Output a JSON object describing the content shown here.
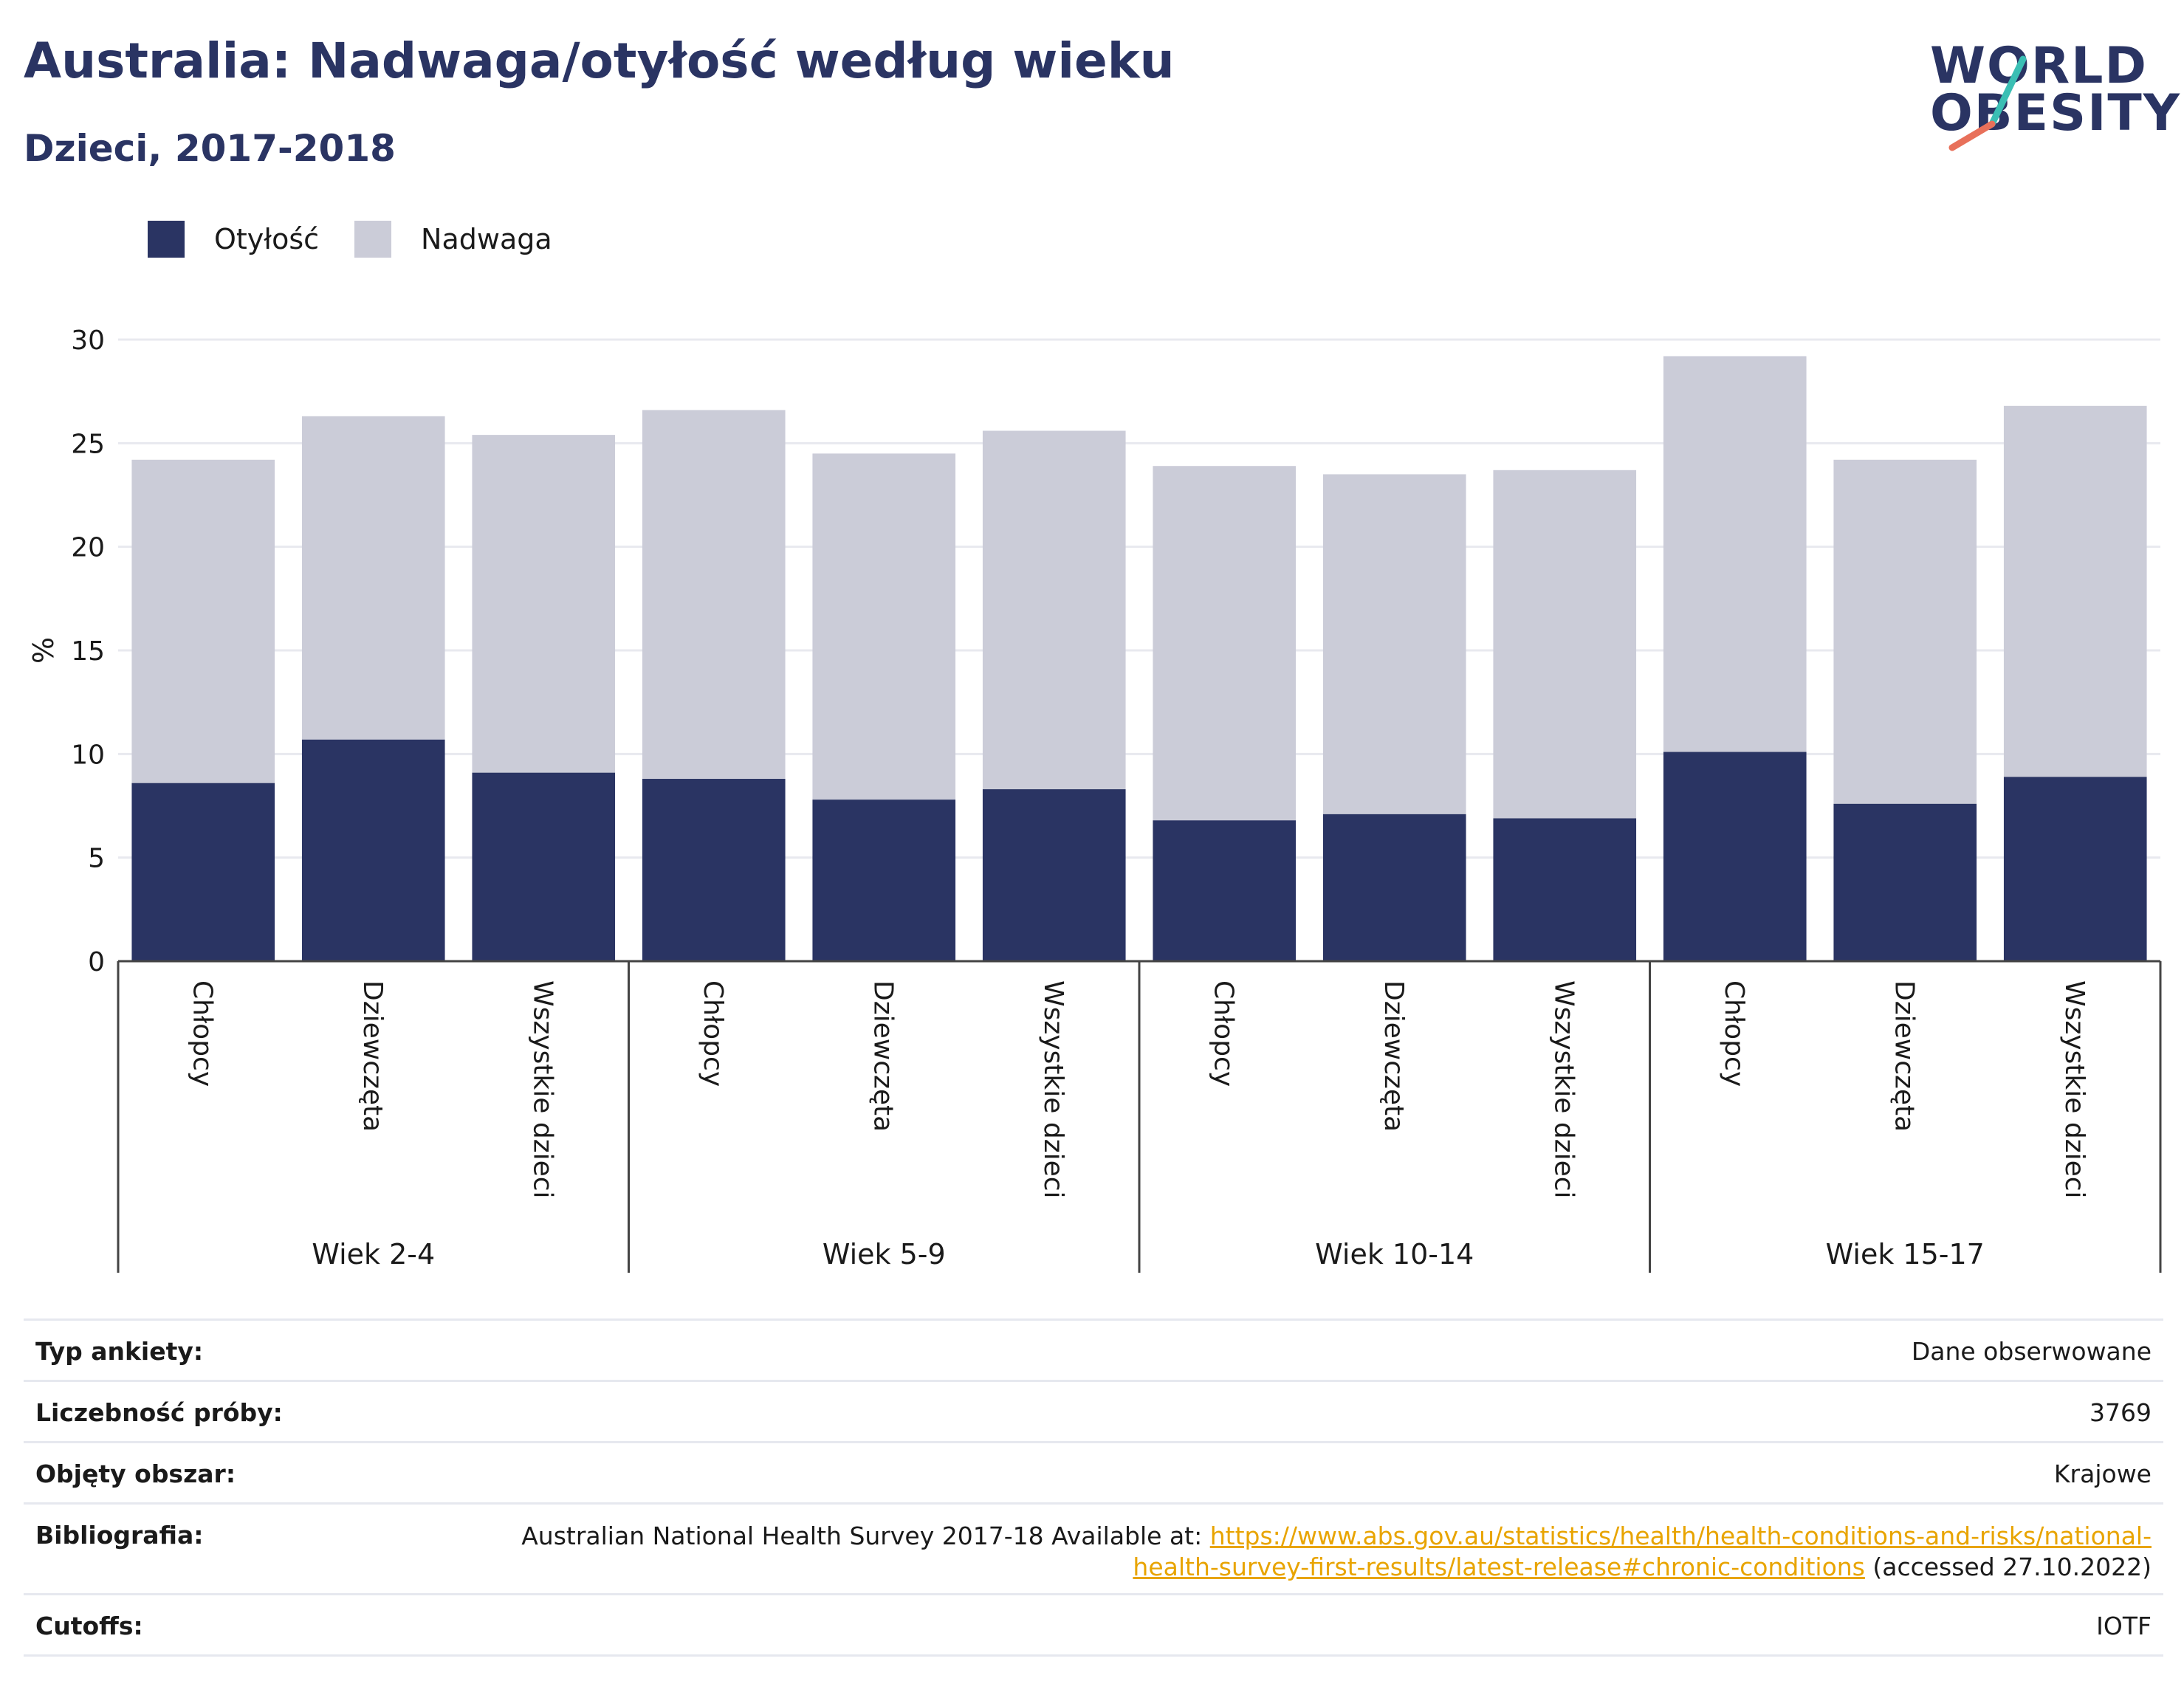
{
  "header": {
    "title": "Australia: Nadwaga/otyłość według wieku",
    "subtitle": "Dzieci, 2017-2018"
  },
  "logo": {
    "line1": "WORLD",
    "line2": "OBESITY",
    "colors": {
      "text": "#2a3463",
      "slash_top": "#3bbfb4",
      "slash_bottom": "#e8705a"
    }
  },
  "legend": [
    {
      "label": "Otyłość",
      "color": "#2a3463"
    },
    {
      "label": "Nadwaga",
      "color": "#cbccd8"
    }
  ],
  "chart_data": {
    "type": "bar",
    "stacked": true,
    "ylabel": "%",
    "ylim": [
      0,
      30
    ],
    "yticks": [
      0,
      5,
      10,
      15,
      20,
      25,
      30
    ],
    "grid": true,
    "legend_position": "top-left",
    "groups": [
      {
        "label": "Wiek 2-4",
        "categories": [
          "Chłopcy",
          "Dziewczęta",
          "Wszystkie dzieci"
        ]
      },
      {
        "label": "Wiek 5-9",
        "categories": [
          "Chłopcy",
          "Dziewczęta",
          "Wszystkie dzieci"
        ]
      },
      {
        "label": "Wiek 10-14",
        "categories": [
          "Chłopcy",
          "Dziewczęta",
          "Wszystkie dzieci"
        ]
      },
      {
        "label": "Wiek 15-17",
        "categories": [
          "Chłopcy",
          "Dziewczęta",
          "Wszystkie dzieci"
        ]
      }
    ],
    "series": [
      {
        "name": "Otyłość",
        "color": "#2a3463",
        "values": [
          8.6,
          10.7,
          9.1,
          8.8,
          7.8,
          8.3,
          6.8,
          7.1,
          6.9,
          10.1,
          7.6,
          8.9
        ]
      },
      {
        "name": "Nadwaga",
        "color": "#cbccd8",
        "values": [
          15.6,
          15.6,
          16.3,
          17.8,
          16.7,
          17.3,
          17.1,
          16.4,
          16.8,
          19.1,
          16.6,
          17.9
        ]
      }
    ]
  },
  "info_table": [
    {
      "label": "Typ ankiety:",
      "value": "Dane obserwowane"
    },
    {
      "label": "Liczebność próby:",
      "value": "3769"
    },
    {
      "label": "Objęty obszar:",
      "value": "Krajowe"
    },
    {
      "label": "Bibliografia:",
      "value_prefix": "Australian National Health Survey 2017-18 Available at: ",
      "link": "https://www.abs.gov.au/statistics/health/health-conditions-and-risks/national-health-survey-first-results/latest-release#chronic-conditions",
      "value_suffix": " (accessed 27.10.2022)"
    },
    {
      "label": "Cutoffs:",
      "value": "IOTF"
    }
  ]
}
